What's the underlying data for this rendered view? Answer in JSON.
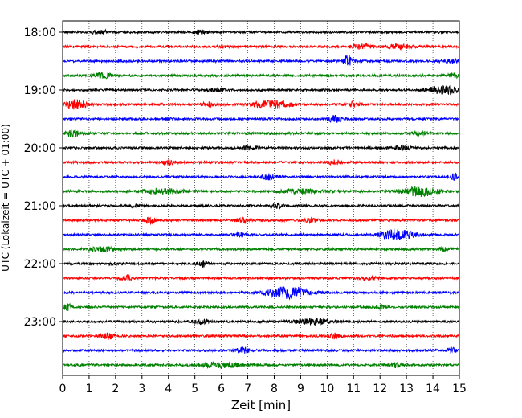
{
  "chart_data": {
    "type": "line",
    "title": "",
    "xlabel": "Zeit  [min]",
    "ylabel": "UTC (Lokalzeit = UTC + 01:00)",
    "xlim": [
      0,
      15
    ],
    "x_ticks": [
      "0",
      "1",
      "2",
      "3",
      "4",
      "5",
      "6",
      "7",
      "8",
      "9",
      "10",
      "11",
      "12",
      "13",
      "14",
      "15"
    ],
    "y_ticks": [
      "18:00",
      "19:00",
      "20:00",
      "21:00",
      "22:00",
      "23:00"
    ],
    "grid": "vertical dotted",
    "trace_interval_min": 15,
    "trace_colors": [
      "#000000",
      "#ff0000",
      "#0000ff",
      "#008000"
    ],
    "traces": [
      {
        "start": "18:00",
        "events": [
          [
            1.4,
            0.6,
            0.25
          ],
          [
            5.2,
            0.5,
            0.3
          ]
        ]
      },
      {
        "start": "18:15",
        "events": [
          [
            6.0,
            0.4,
            0.2
          ],
          [
            11.3,
            0.8,
            0.3
          ],
          [
            12.7,
            1.0,
            0.25
          ]
        ]
      },
      {
        "start": "18:30",
        "events": [
          [
            10.8,
            0.4,
            0.7
          ],
          [
            14.7,
            0.5,
            0.25
          ]
        ]
      },
      {
        "start": "18:45",
        "events": [
          [
            1.5,
            0.6,
            0.4
          ],
          [
            14.8,
            0.4,
            0.3
          ]
        ]
      },
      {
        "start": "19:00",
        "events": [
          [
            5.8,
            0.5,
            0.3
          ],
          [
            14.4,
            1.2,
            0.5
          ]
        ]
      },
      {
        "start": "19:15",
        "events": [
          [
            0.5,
            0.8,
            0.6
          ],
          [
            5.5,
            0.5,
            0.3
          ],
          [
            7.9,
            1.5,
            0.5
          ],
          [
            11.0,
            0.4,
            0.35
          ]
        ]
      },
      {
        "start": "19:30",
        "events": [
          [
            10.3,
            0.5,
            0.45
          ],
          [
            4.0,
            0.3,
            0.15
          ]
        ]
      },
      {
        "start": "19:45",
        "events": [
          [
            0.4,
            0.5,
            0.45
          ],
          [
            13.5,
            0.5,
            0.3
          ]
        ]
      },
      {
        "start": "20:00",
        "events": [
          [
            7.1,
            0.5,
            0.4
          ],
          [
            12.8,
            0.8,
            0.25
          ]
        ]
      },
      {
        "start": "20:15",
        "events": [
          [
            4.0,
            0.5,
            0.3
          ],
          [
            10.3,
            0.6,
            0.3
          ]
        ]
      },
      {
        "start": "20:30",
        "events": [
          [
            7.8,
            0.6,
            0.35
          ],
          [
            14.8,
            0.4,
            0.35
          ]
        ]
      },
      {
        "start": "20:45",
        "events": [
          [
            3.8,
            1.5,
            0.35
          ],
          [
            9.0,
            1.5,
            0.3
          ],
          [
            13.5,
            1.4,
            0.65
          ]
        ]
      },
      {
        "start": "21:00",
        "events": [
          [
            8.1,
            0.5,
            0.3
          ],
          [
            2.7,
            0.3,
            0.15
          ]
        ]
      },
      {
        "start": "21:15",
        "events": [
          [
            3.3,
            0.4,
            0.45
          ],
          [
            6.8,
            0.4,
            0.35
          ],
          [
            9.4,
            0.4,
            0.35
          ]
        ]
      },
      {
        "start": "21:30",
        "events": [
          [
            6.7,
            0.4,
            0.3
          ],
          [
            12.6,
            1.2,
            0.75
          ]
        ]
      },
      {
        "start": "21:45",
        "events": [
          [
            1.5,
            1.0,
            0.3
          ],
          [
            14.4,
            0.4,
            0.3
          ]
        ]
      },
      {
        "start": "22:00",
        "events": [
          [
            5.3,
            0.4,
            0.4
          ],
          [
            2.0,
            0.2,
            0.2
          ]
        ]
      },
      {
        "start": "22:15",
        "events": [
          [
            2.4,
            0.5,
            0.3
          ],
          [
            11.5,
            0.6,
            0.2
          ]
        ]
      },
      {
        "start": "22:30",
        "events": [
          [
            8.5,
            1.6,
            0.75
          ]
        ]
      },
      {
        "start": "22:45",
        "events": [
          [
            0.2,
            0.3,
            0.45
          ],
          [
            12.0,
            0.4,
            0.3
          ]
        ]
      },
      {
        "start": "23:00",
        "events": [
          [
            5.2,
            0.6,
            0.3
          ],
          [
            9.5,
            1.3,
            0.4
          ]
        ]
      },
      {
        "start": "23:15",
        "events": [
          [
            1.7,
            0.5,
            0.35
          ],
          [
            10.3,
            0.4,
            0.35
          ]
        ]
      },
      {
        "start": "23:30",
        "events": [
          [
            6.8,
            0.5,
            0.35
          ],
          [
            14.7,
            0.3,
            0.35
          ]
        ]
      },
      {
        "start": "23:45",
        "events": [
          [
            6.0,
            1.5,
            0.4
          ],
          [
            12.6,
            0.5,
            0.3
          ]
        ]
      }
    ]
  }
}
